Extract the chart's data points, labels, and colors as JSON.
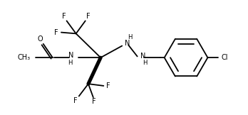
{
  "background": "#ffffff",
  "line_color": "#000000",
  "line_width": 1.3,
  "font_size": 7.0,
  "figsize": [
    3.48,
    1.62
  ],
  "dpi": 100,
  "xlim": [
    0,
    10
  ],
  "ylim": [
    0,
    4.65
  ]
}
